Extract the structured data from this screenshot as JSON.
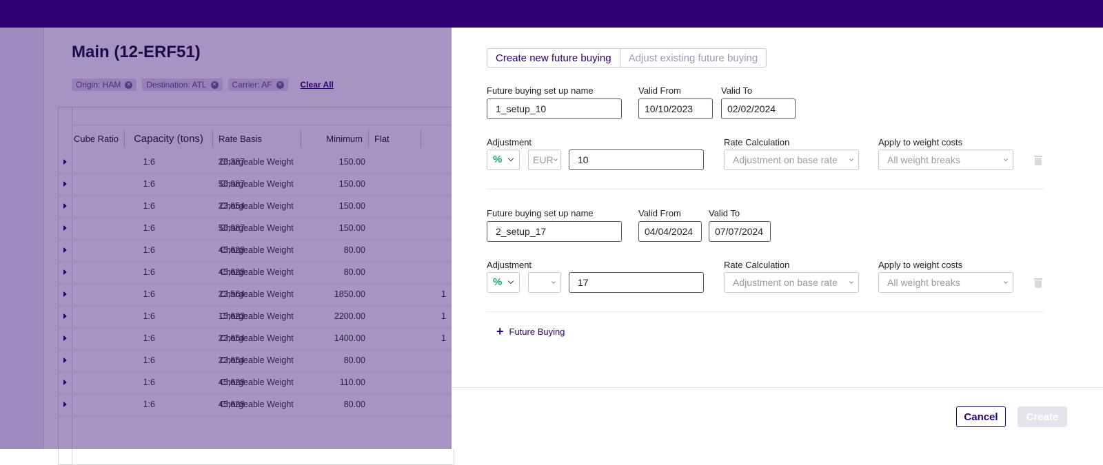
{
  "background": {
    "title": "Main (12-ERF51)",
    "filters": [
      {
        "label": "Origin: HAM"
      },
      {
        "label": "Destination: ATL"
      },
      {
        "label": "Carrier: AF"
      }
    ],
    "clear_all": "Clear All",
    "columns": {
      "cube_ratio": "Cube Ratio",
      "capacity": "Capacity (tons)",
      "rate_basis": "Rate Basis",
      "minimum": "Minimum",
      "flat": "Flat"
    },
    "rows": [
      {
        "cube": "1:6",
        "capacity": "26,387",
        "basis": "Chargeable Weight",
        "minimum": "150.00",
        "flat": ""
      },
      {
        "cube": "1:6",
        "capacity": "56,987",
        "basis": "Chargeable Weight",
        "minimum": "150.00",
        "flat": ""
      },
      {
        "cube": "1:6",
        "capacity": "23,654",
        "basis": "Chargeable Weight",
        "minimum": "150.00",
        "flat": ""
      },
      {
        "cube": "1:6",
        "capacity": "56,987",
        "basis": "Chargeable Weight",
        "minimum": "150.00",
        "flat": ""
      },
      {
        "cube": "1:6",
        "capacity": "45,628",
        "basis": "Chargeable Weight",
        "minimum": "80.00",
        "flat": ""
      },
      {
        "cube": "1:6",
        "capacity": "45,628",
        "basis": "Chargeable Weight",
        "minimum": "80.00",
        "flat": ""
      },
      {
        "cube": "1:6",
        "capacity": "23,564",
        "basis": "Chargeable Weight",
        "minimum": "1850.00",
        "flat": "1"
      },
      {
        "cube": "1:6",
        "capacity": "15,623",
        "basis": "Chargeable Weight",
        "minimum": "2200.00",
        "flat": "1"
      },
      {
        "cube": "1:6",
        "capacity": "23,654",
        "basis": "Chargeable Weight",
        "minimum": "1400.00",
        "flat": "1"
      },
      {
        "cube": "1:6",
        "capacity": "23,654",
        "basis": "Chargeable Weight",
        "minimum": "80.00",
        "flat": ""
      },
      {
        "cube": "1:6",
        "capacity": "45,628",
        "basis": "Chargeable Weight",
        "minimum": "110.00",
        "flat": ""
      },
      {
        "cube": "1:6",
        "capacity": "45,628",
        "basis": "Chargeable Weight",
        "minimum": "80.00",
        "flat": ""
      }
    ]
  },
  "drawer": {
    "tabs": {
      "create": "Create new future buying",
      "adjust": "Adjust existing future buying"
    },
    "setups": [
      {
        "name_label": "Future buying set up name",
        "name_value": "1_setup_10",
        "valid_from_label": "Valid From",
        "valid_from_value": "10/10/2023",
        "valid_to_label": "Valid To",
        "valid_to_value": "02/02/2024",
        "adjustment_label": "Adjustment",
        "adjustment_type": "%",
        "currency": "EUR",
        "amount": "10",
        "rate_calc_label": "Rate Calculation",
        "rate_calc_value": "Adjustment on base rate",
        "weight_costs_label": "Apply to weight costs",
        "weight_costs_value": "All weight breaks"
      },
      {
        "name_label": "Future buying set up name",
        "name_value": "2_setup_17",
        "valid_from_label": "Valid From",
        "valid_from_value": "04/04/2024",
        "valid_to_label": "Valid To",
        "valid_to_value": "07/07/2024",
        "adjustment_label": "Adjustment",
        "adjustment_type": "%",
        "currency": "",
        "amount": "17",
        "rate_calc_label": "Rate Calculation",
        "rate_calc_value": "Adjustment on base rate",
        "weight_costs_label": "Apply to weight costs",
        "weight_costs_value": "All weight breaks"
      }
    ],
    "add_label": "Future Buying",
    "cancel_label": "Cancel",
    "create_label": "Create"
  }
}
